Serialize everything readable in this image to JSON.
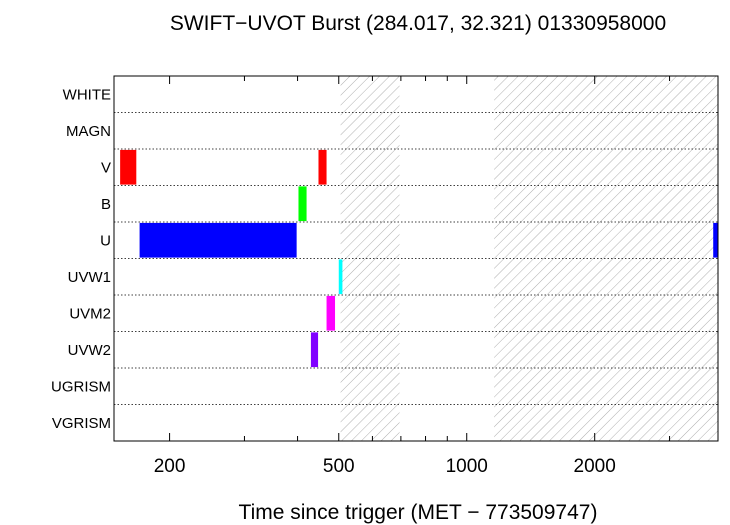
{
  "chart_data": {
    "type": "bar",
    "title": "SWIFT−UVOT Burst (284.017, 32.321) 01330958000",
    "xlabel": "Time since trigger (MET − 773509747)",
    "ylabel": "",
    "x_scale": "log",
    "xlim": [
      148,
      3900
    ],
    "x_ticks": [
      200,
      500,
      1000,
      2000
    ],
    "x_tick_labels": [
      "200",
      "500",
      "1000",
      "2000"
    ],
    "categories": [
      "WHITE",
      "MAGN",
      "V",
      "B",
      "U",
      "UVW1",
      "UVM2",
      "UVW2",
      "UGRISM",
      "VGRISM"
    ],
    "grid": "horizontal dotted lines between filters",
    "shaded_intervals": [
      [
        505,
        695
      ],
      [
        1160,
        3900
      ]
    ],
    "series": [
      {
        "filter": "V",
        "color": "#ff0000",
        "intervals": [
          [
            153,
            167
          ],
          [
            448,
            468
          ]
        ]
      },
      {
        "filter": "B",
        "color": "#00ff00",
        "intervals": [
          [
            402,
            420
          ]
        ]
      },
      {
        "filter": "U",
        "color": "#0000ff",
        "intervals": [
          [
            170,
            398
          ],
          [
            3800,
            3900
          ]
        ]
      },
      {
        "filter": "UVW1",
        "color": "#00ffff",
        "intervals": [
          [
            500,
            510
          ]
        ]
      },
      {
        "filter": "UVM2",
        "color": "#ff00ff",
        "intervals": [
          [
            468,
            490
          ]
        ]
      },
      {
        "filter": "UVW2",
        "color": "#8000ff",
        "intervals": [
          [
            430,
            447
          ]
        ]
      }
    ]
  }
}
